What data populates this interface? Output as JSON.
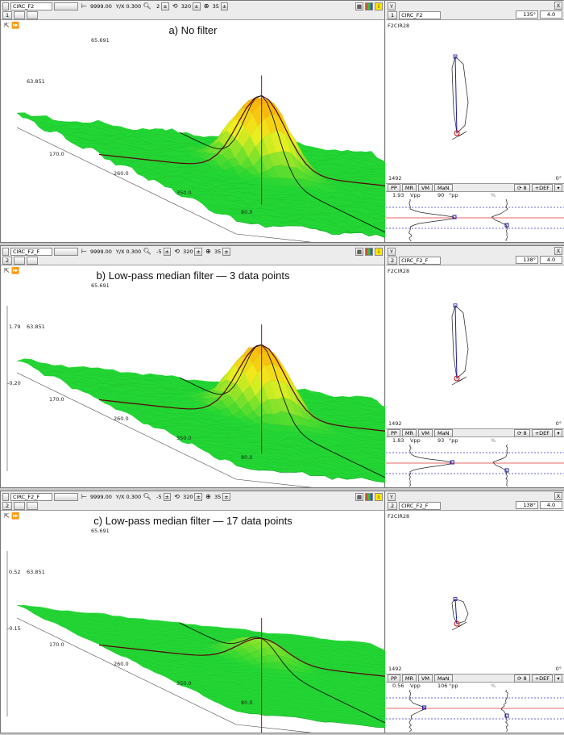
{
  "panels": [
    {
      "toolbar": {
        "channel_field": "CIRC_F2",
        "range": "9999.00",
        "yx_label": "Y/X",
        "yx_value": "0.300",
        "rot_a": "2",
        "rot_b": "320",
        "tilt": "35",
        "row2_index": "1"
      },
      "title": "a) No filter",
      "axis_labels": {
        "top": "65.691",
        "mid": "63.851",
        "x1": "170.0",
        "x2": "260.0",
        "x3": "350.0",
        "x4": "80.0",
        "side_top": "",
        "side_bot": ""
      },
      "right_header": {
        "y_button": "Y",
        "x_button": "X",
        "index": "1",
        "channel": "CIRC_F2",
        "angle": "135°",
        "gain": "4.0"
      },
      "lissajous_label": "F2CIR28",
      "bottom_left": "1492",
      "bottom_right": "0°",
      "stat_buttons": [
        "PP",
        "MR",
        "VM",
        "MaN"
      ],
      "stat_right": [
        "8",
        "+DEF"
      ],
      "vpp_value": "1.93",
      "vpp_unit": "Vpp",
      "deg_value": "90",
      "deg_unit": "°pp",
      "pct": "%",
      "peak": 1.0
    },
    {
      "toolbar": {
        "channel_field": "CIRC_F2_F",
        "range": "9999.00",
        "yx_label": "Y/X",
        "yx_value": "0.300",
        "rot_a": "-5",
        "rot_b": "320",
        "tilt": "35",
        "row2_index": "2"
      },
      "title": "b) Low-pass median filter — 3 data points",
      "axis_labels": {
        "top": "65.691",
        "mid": "63.851",
        "x1": "170.0",
        "x2": "260.0",
        "x3": "350.0",
        "x4": "80.0",
        "side_top": "1.79",
        "side_bot": "-0.20"
      },
      "right_header": {
        "y_button": "Y",
        "x_button": "X",
        "index": "2",
        "channel": "CIRC_F2_F",
        "angle": "138°",
        "gain": "4.0"
      },
      "lissajous_label": "F2CIR28",
      "bottom_left": "1492",
      "bottom_right": "0°",
      "stat_buttons": [
        "PP",
        "MR",
        "VM",
        "MaN"
      ],
      "stat_right": [
        "8",
        "+DEF"
      ],
      "vpp_value": "1.83",
      "vpp_unit": "Vpp",
      "deg_value": "93",
      "deg_unit": "°pp",
      "pct": "%",
      "peak": 0.95
    },
    {
      "toolbar": {
        "channel_field": "CIRC_F2_F",
        "range": "9999.00",
        "yx_label": "Y/X",
        "yx_value": "0.300",
        "rot_a": "-5",
        "rot_b": "320",
        "tilt": "35",
        "row2_index": "2"
      },
      "title": "c) Low-pass median filter — 17 data points",
      "axis_labels": {
        "top": "65.691",
        "mid": "63.851",
        "x1": "170.0",
        "x2": "260.0",
        "x3": "350.0",
        "x4": "80.0",
        "side_top": "0.52",
        "side_bot": "-0.15"
      },
      "right_header": {
        "y_button": "Y",
        "x_button": "X",
        "index": "2",
        "channel": "CIRC_F2_F",
        "angle": "138°",
        "gain": "4.0"
      },
      "lissajous_label": "F2CIR28",
      "bottom_left": "1492",
      "bottom_right": "0°",
      "stat_buttons": [
        "PP",
        "MR",
        "VM",
        "MaN"
      ],
      "stat_right": [
        "8",
        "+DEF"
      ],
      "vpp_value": "0.56",
      "vpp_unit": "Vpp",
      "deg_value": "106",
      "deg_unit": "°pp",
      "pct": "%",
      "peak": 0.32
    }
  ],
  "colors": {
    "surface_low": "#22d633",
    "surface_high": "#ff9a00",
    "cursor_red": "#c00000",
    "cursor_dark": "#5a0000",
    "trace_blue": "#1a1aa8"
  },
  "icons": [
    "zoom-icon",
    "rotate-icon",
    "tilt-icon",
    "layers-icon",
    "info-icon",
    "expand-icon"
  ]
}
